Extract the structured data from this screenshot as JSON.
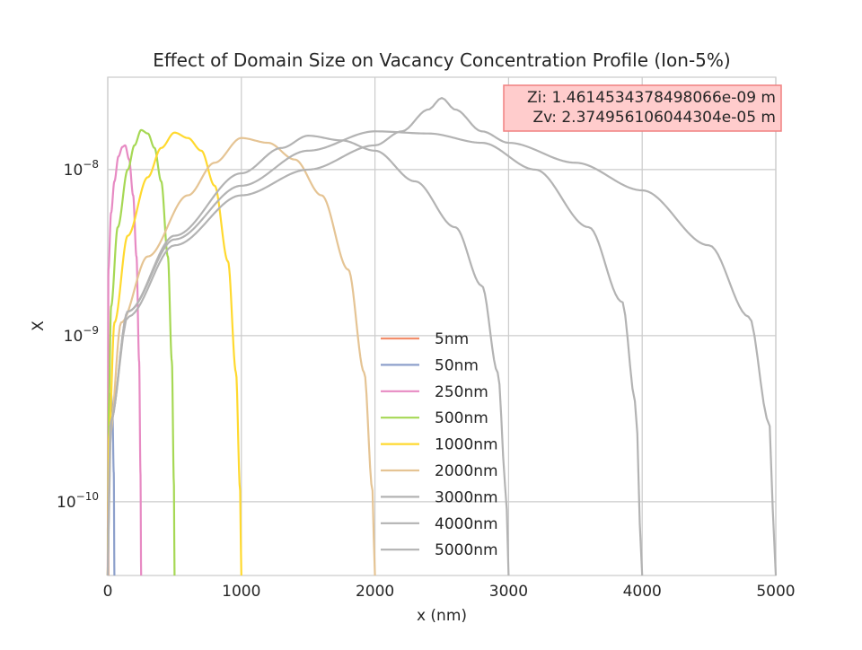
{
  "chart_data": {
    "type": "line",
    "title": "Effect of Domain Size on Vacancy Concentration Profile (Ion-5%)",
    "xlabel": "x (nm)",
    "ylabel": "X",
    "xlim": [
      0,
      5000
    ],
    "ylim": [
      3.6e-11,
      3.6e-08
    ],
    "yscale": "log",
    "grid": true,
    "x_ticks": [
      0,
      1000,
      2000,
      3000,
      4000,
      5000
    ],
    "x_tick_labels": [
      "0",
      "1000",
      "2000",
      "3000",
      "4000",
      "5000"
    ],
    "y_ticks": [
      1e-10,
      1e-09,
      1e-08
    ],
    "y_tick_labels": [
      {
        "base": "10",
        "exp": "−10"
      },
      {
        "base": "10",
        "exp": "−9"
      },
      {
        "base": "10",
        "exp": "−8"
      }
    ],
    "legend_position": "lower-center",
    "annotation": {
      "lines": [
        "Zi: 1.4614534378498066e-09 m",
        "Zv: 2.374956106044304e-05 m"
      ],
      "position": "top-right",
      "bg_color": "#ffcccc",
      "border_color": "#f08080"
    },
    "series": [
      {
        "name": "5nm",
        "length": 5,
        "color": "#f28e6b",
        "points": [
          [
            0,
            3.6e-11
          ],
          [
            0.5,
            7e-11
          ],
          [
            2.5,
            1e-10
          ],
          [
            4.5,
            7e-11
          ],
          [
            5,
            3.6e-11
          ]
        ]
      },
      {
        "name": "50nm",
        "length": 50,
        "color": "#8da0cb",
        "points": [
          [
            0,
            3.6e-11
          ],
          [
            5,
            1.5e-10
          ],
          [
            15,
            3.5e-10
          ],
          [
            25,
            4.5e-10
          ],
          [
            35,
            3.5e-10
          ],
          [
            45,
            1.5e-10
          ],
          [
            50,
            3.6e-11
          ]
        ]
      },
      {
        "name": "250nm",
        "length": 250,
        "color": "#e78ac3",
        "points": [
          [
            0,
            3.6e-11
          ],
          [
            5,
            2.5e-09
          ],
          [
            25,
            5.5e-09
          ],
          [
            50,
            8.5e-09
          ],
          [
            80,
            1.2e-08
          ],
          [
            110,
            1.37e-08
          ],
          [
            130,
            1.4e-08
          ],
          [
            160,
            1.15e-08
          ],
          [
            190,
            7e-09
          ],
          [
            215,
            3e-09
          ],
          [
            235,
            7e-10
          ],
          [
            245,
            1.5e-10
          ],
          [
            250,
            3.6e-11
          ]
        ]
      },
      {
        "name": "500nm",
        "length": 500,
        "color": "#a6d854",
        "points": [
          [
            0,
            3.6e-11
          ],
          [
            8,
            4e-10
          ],
          [
            25,
            1.5e-09
          ],
          [
            75,
            4.5e-09
          ],
          [
            150,
            1e-08
          ],
          [
            200,
            1.4e-08
          ],
          [
            250,
            1.73e-08
          ],
          [
            300,
            1.65e-08
          ],
          [
            350,
            1.35e-08
          ],
          [
            400,
            8.5e-09
          ],
          [
            450,
            3e-09
          ],
          [
            480,
            7e-10
          ],
          [
            495,
            1.3e-10
          ],
          [
            500,
            3.6e-11
          ]
        ]
      },
      {
        "name": "1000nm",
        "length": 1000,
        "color": "#ffd92f",
        "points": [
          [
            0,
            3.6e-11
          ],
          [
            10,
            2.5e-10
          ],
          [
            50,
            1.2e-09
          ],
          [
            150,
            4e-09
          ],
          [
            300,
            9e-09
          ],
          [
            400,
            1.35e-08
          ],
          [
            500,
            1.67e-08
          ],
          [
            600,
            1.55e-08
          ],
          [
            700,
            1.3e-08
          ],
          [
            800,
            8e-09
          ],
          [
            900,
            2.8e-09
          ],
          [
            960,
            6e-10
          ],
          [
            990,
            1.2e-10
          ],
          [
            1000,
            3.6e-11
          ]
        ]
      },
      {
        "name": "2000nm",
        "length": 2000,
        "color": "#e5c494",
        "points": [
          [
            0,
            3.6e-11
          ],
          [
            15,
            2.5e-10
          ],
          [
            100,
            1.2e-09
          ],
          [
            300,
            3e-09
          ],
          [
            600,
            7e-09
          ],
          [
            800,
            1.1e-08
          ],
          [
            1000,
            1.55e-08
          ],
          [
            1200,
            1.45e-08
          ],
          [
            1400,
            1.15e-08
          ],
          [
            1600,
            7e-09
          ],
          [
            1800,
            2.5e-09
          ],
          [
            1920,
            6e-10
          ],
          [
            1980,
            1.2e-10
          ],
          [
            2000,
            3.6e-11
          ]
        ]
      },
      {
        "name": "3000nm",
        "length": 3000,
        "color": "#b3b3b3",
        "points": [
          [
            0,
            3.6e-11
          ],
          [
            20,
            3e-10
          ],
          [
            150,
            1.4e-09
          ],
          [
            500,
            4e-09
          ],
          [
            1000,
            9.5e-09
          ],
          [
            1300,
            1.35e-08
          ],
          [
            1500,
            1.6e-08
          ],
          [
            1750,
            1.5e-08
          ],
          [
            2000,
            1.3e-08
          ],
          [
            2300,
            8.5e-09
          ],
          [
            2600,
            4.5e-09
          ],
          [
            2800,
            2e-09
          ],
          [
            2920,
            6e-10
          ],
          [
            2980,
            1.2e-10
          ],
          [
            3000,
            3.6e-11
          ]
        ]
      },
      {
        "name": "4000nm",
        "length": 4000,
        "color": "#b3b3b3",
        "points": [
          [
            0,
            3.6e-11
          ],
          [
            20,
            3e-10
          ],
          [
            150,
            1.4e-09
          ],
          [
            500,
            3.8e-09
          ],
          [
            1000,
            8e-09
          ],
          [
            1500,
            1.3e-08
          ],
          [
            2000,
            1.7e-08
          ],
          [
            2400,
            1.65e-08
          ],
          [
            2800,
            1.45e-08
          ],
          [
            3200,
            1e-08
          ],
          [
            3600,
            4.5e-09
          ],
          [
            3850,
            1.6e-09
          ],
          [
            3950,
            4e-10
          ],
          [
            4000,
            3.6e-11
          ]
        ]
      },
      {
        "name": "5000nm",
        "length": 5000,
        "color": "#b3b3b3",
        "points": [
          [
            0,
            3.6e-11
          ],
          [
            20,
            3e-10
          ],
          [
            150,
            1.3e-09
          ],
          [
            500,
            3.5e-09
          ],
          [
            1000,
            7e-09
          ],
          [
            1500,
            1e-08
          ],
          [
            2000,
            1.4e-08
          ],
          [
            2200,
            1.7e-08
          ],
          [
            2400,
            2.3e-08
          ],
          [
            2500,
            2.7e-08
          ],
          [
            2600,
            2.3e-08
          ],
          [
            2800,
            1.7e-08
          ],
          [
            3000,
            1.45e-08
          ],
          [
            3500,
            1.1e-08
          ],
          [
            4000,
            7.5e-09
          ],
          [
            4500,
            3.5e-09
          ],
          [
            4800,
            1.3e-09
          ],
          [
            4950,
            3e-10
          ],
          [
            5000,
            3.6e-11
          ]
        ]
      }
    ]
  }
}
